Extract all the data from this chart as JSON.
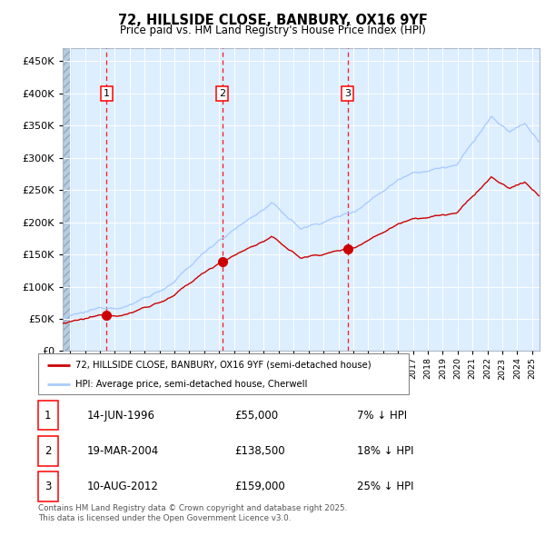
{
  "title": "72, HILLSIDE CLOSE, BANBURY, OX16 9YF",
  "subtitle": "Price paid vs. HM Land Registry's House Price Index (HPI)",
  "legend_property": "72, HILLSIDE CLOSE, BANBURY, OX16 9YF (semi-detached house)",
  "legend_hpi": "HPI: Average price, semi-detached house, Cherwell",
  "footer": "Contains HM Land Registry data © Crown copyright and database right 2025.\nThis data is licensed under the Open Government Licence v3.0.",
  "sales": [
    {
      "num": 1,
      "date": "14-JUN-1996",
      "price": 55000,
      "year": 1996.45,
      "pct": "7% ↓ HPI"
    },
    {
      "num": 2,
      "date": "19-MAR-2004",
      "price": 138500,
      "year": 2004.21,
      "pct": "18% ↓ HPI"
    },
    {
      "num": 3,
      "date": "10-AUG-2012",
      "price": 159000,
      "year": 2012.61,
      "pct": "25% ↓ HPI"
    }
  ],
  "hpi_color": "#aaccff",
  "property_color": "#cc0000",
  "vline_color": "#ff0000",
  "background_chart": "#ddeeff",
  "xmin": 1993.5,
  "xmax": 2025.5,
  "ymin": 0,
  "ymax": 470000,
  "yticks": [
    0,
    50000,
    100000,
    150000,
    200000,
    250000,
    300000,
    350000,
    400000,
    450000
  ]
}
